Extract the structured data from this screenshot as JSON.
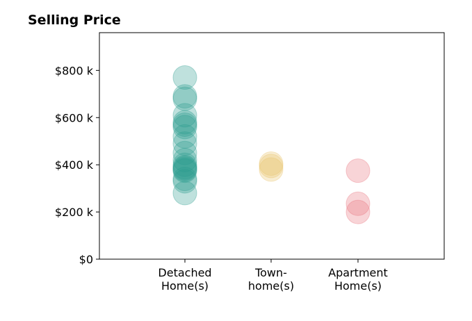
{
  "chart_data": {
    "type": "scatter",
    "title": "Selling Price",
    "xlabel": "",
    "ylabel": "",
    "grid": false,
    "categories": [
      [
        "Detached",
        "Home(s)"
      ],
      [
        "Town-",
        "home(s)"
      ],
      [
        "Apartment",
        "Home(s)"
      ]
    ],
    "ylim": [
      0,
      960
    ],
    "yticks": [
      0,
      200,
      400,
      600,
      800
    ],
    "ytick_labels": [
      "$0",
      "$200 k",
      "$400 k",
      "$600 k",
      "$800 k"
    ],
    "series": [
      {
        "category": 0,
        "color": "#2a9d8f",
        "values": [
          770,
          690,
          680,
          610,
          580,
          570,
          560,
          520,
          490,
          450,
          420,
          400,
          390,
          385,
          380,
          375,
          340,
          330,
          280
        ]
      },
      {
        "category": 1,
        "color": "#e9c46a",
        "values": [
          405,
          395,
          380
        ]
      },
      {
        "category": 2,
        "color": "#e76f7a",
        "values": [
          375,
          235,
          200
        ]
      }
    ]
  }
}
